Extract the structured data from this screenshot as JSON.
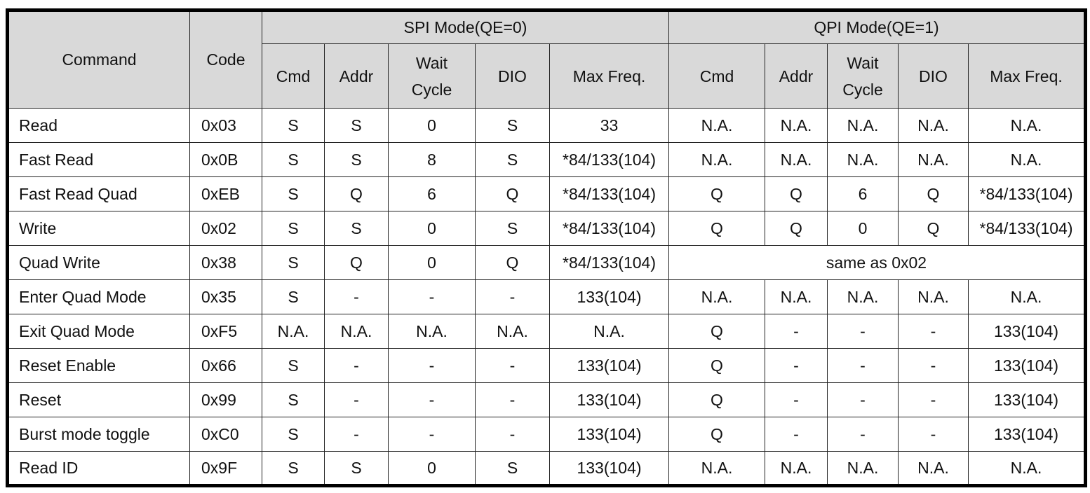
{
  "header": {
    "command": "Command",
    "code": "Code",
    "spi_group": "SPI Mode(QE=0)",
    "qpi_group": "QPI Mode(QE=1)",
    "sub": [
      "Cmd",
      "Addr",
      "Wait Cycle",
      "DIO",
      "Max Freq."
    ]
  },
  "colors": {
    "header_bg": "#d9d9d9",
    "border": "#000000"
  },
  "rows": [
    {
      "command": "Read",
      "code": "0x03",
      "spi": [
        "S",
        "S",
        "0",
        "S",
        "33"
      ],
      "qpi": [
        "N.A.",
        "N.A.",
        "N.A.",
        "N.A.",
        "N.A."
      ]
    },
    {
      "command": "Fast Read",
      "code": "0x0B",
      "spi": [
        "S",
        "S",
        "8",
        "S",
        "*84/133(104)"
      ],
      "qpi": [
        "N.A.",
        "N.A.",
        "N.A.",
        "N.A.",
        "N.A."
      ]
    },
    {
      "command": "Fast Read Quad",
      "code": "0xEB",
      "spi": [
        "S",
        "Q",
        "6",
        "Q",
        "*84/133(104)"
      ],
      "qpi": [
        "Q",
        "Q",
        "6",
        "Q",
        "*84/133(104)"
      ]
    },
    {
      "command": "Write",
      "code": "0x02",
      "spi": [
        "S",
        "S",
        "0",
        "S",
        "*84/133(104)"
      ],
      "qpi": [
        "Q",
        "Q",
        "0",
        "Q",
        "*84/133(104)"
      ]
    },
    {
      "command": "Quad Write",
      "code": "0x38",
      "spi": [
        "S",
        "Q",
        "0",
        "Q",
        "*84/133(104)"
      ],
      "qpi_merged": "same as 0x02"
    },
    {
      "command": "Enter Quad Mode",
      "code": "0x35",
      "spi": [
        "S",
        "-",
        "-",
        "-",
        "133(104)"
      ],
      "qpi": [
        "N.A.",
        "N.A.",
        "N.A.",
        "N.A.",
        "N.A."
      ]
    },
    {
      "command": "Exit Quad Mode",
      "code": "0xF5",
      "spi": [
        "N.A.",
        "N.A.",
        "N.A.",
        "N.A.",
        "N.A."
      ],
      "qpi": [
        "Q",
        "-",
        "-",
        "-",
        "133(104)"
      ]
    },
    {
      "command": "Reset Enable",
      "code": "0x66",
      "spi": [
        "S",
        "-",
        "-",
        "-",
        "133(104)"
      ],
      "qpi": [
        "Q",
        "-",
        "-",
        "-",
        "133(104)"
      ]
    },
    {
      "command": "Reset",
      "code": "0x99",
      "spi": [
        "S",
        "-",
        "-",
        "-",
        "133(104)"
      ],
      "qpi": [
        "Q",
        "-",
        "-",
        "-",
        "133(104)"
      ]
    },
    {
      "command": "Burst mode toggle",
      "code": "0xC0",
      "spi": [
        "S",
        "-",
        "-",
        "-",
        "133(104)"
      ],
      "qpi": [
        "Q",
        "-",
        "-",
        "-",
        "133(104)"
      ]
    },
    {
      "command": "Read ID",
      "code": "0x9F",
      "spi": [
        "S",
        "S",
        "0",
        "S",
        "133(104)"
      ],
      "qpi": [
        "N.A.",
        "N.A.",
        "N.A.",
        "N.A.",
        "N.A."
      ]
    }
  ]
}
